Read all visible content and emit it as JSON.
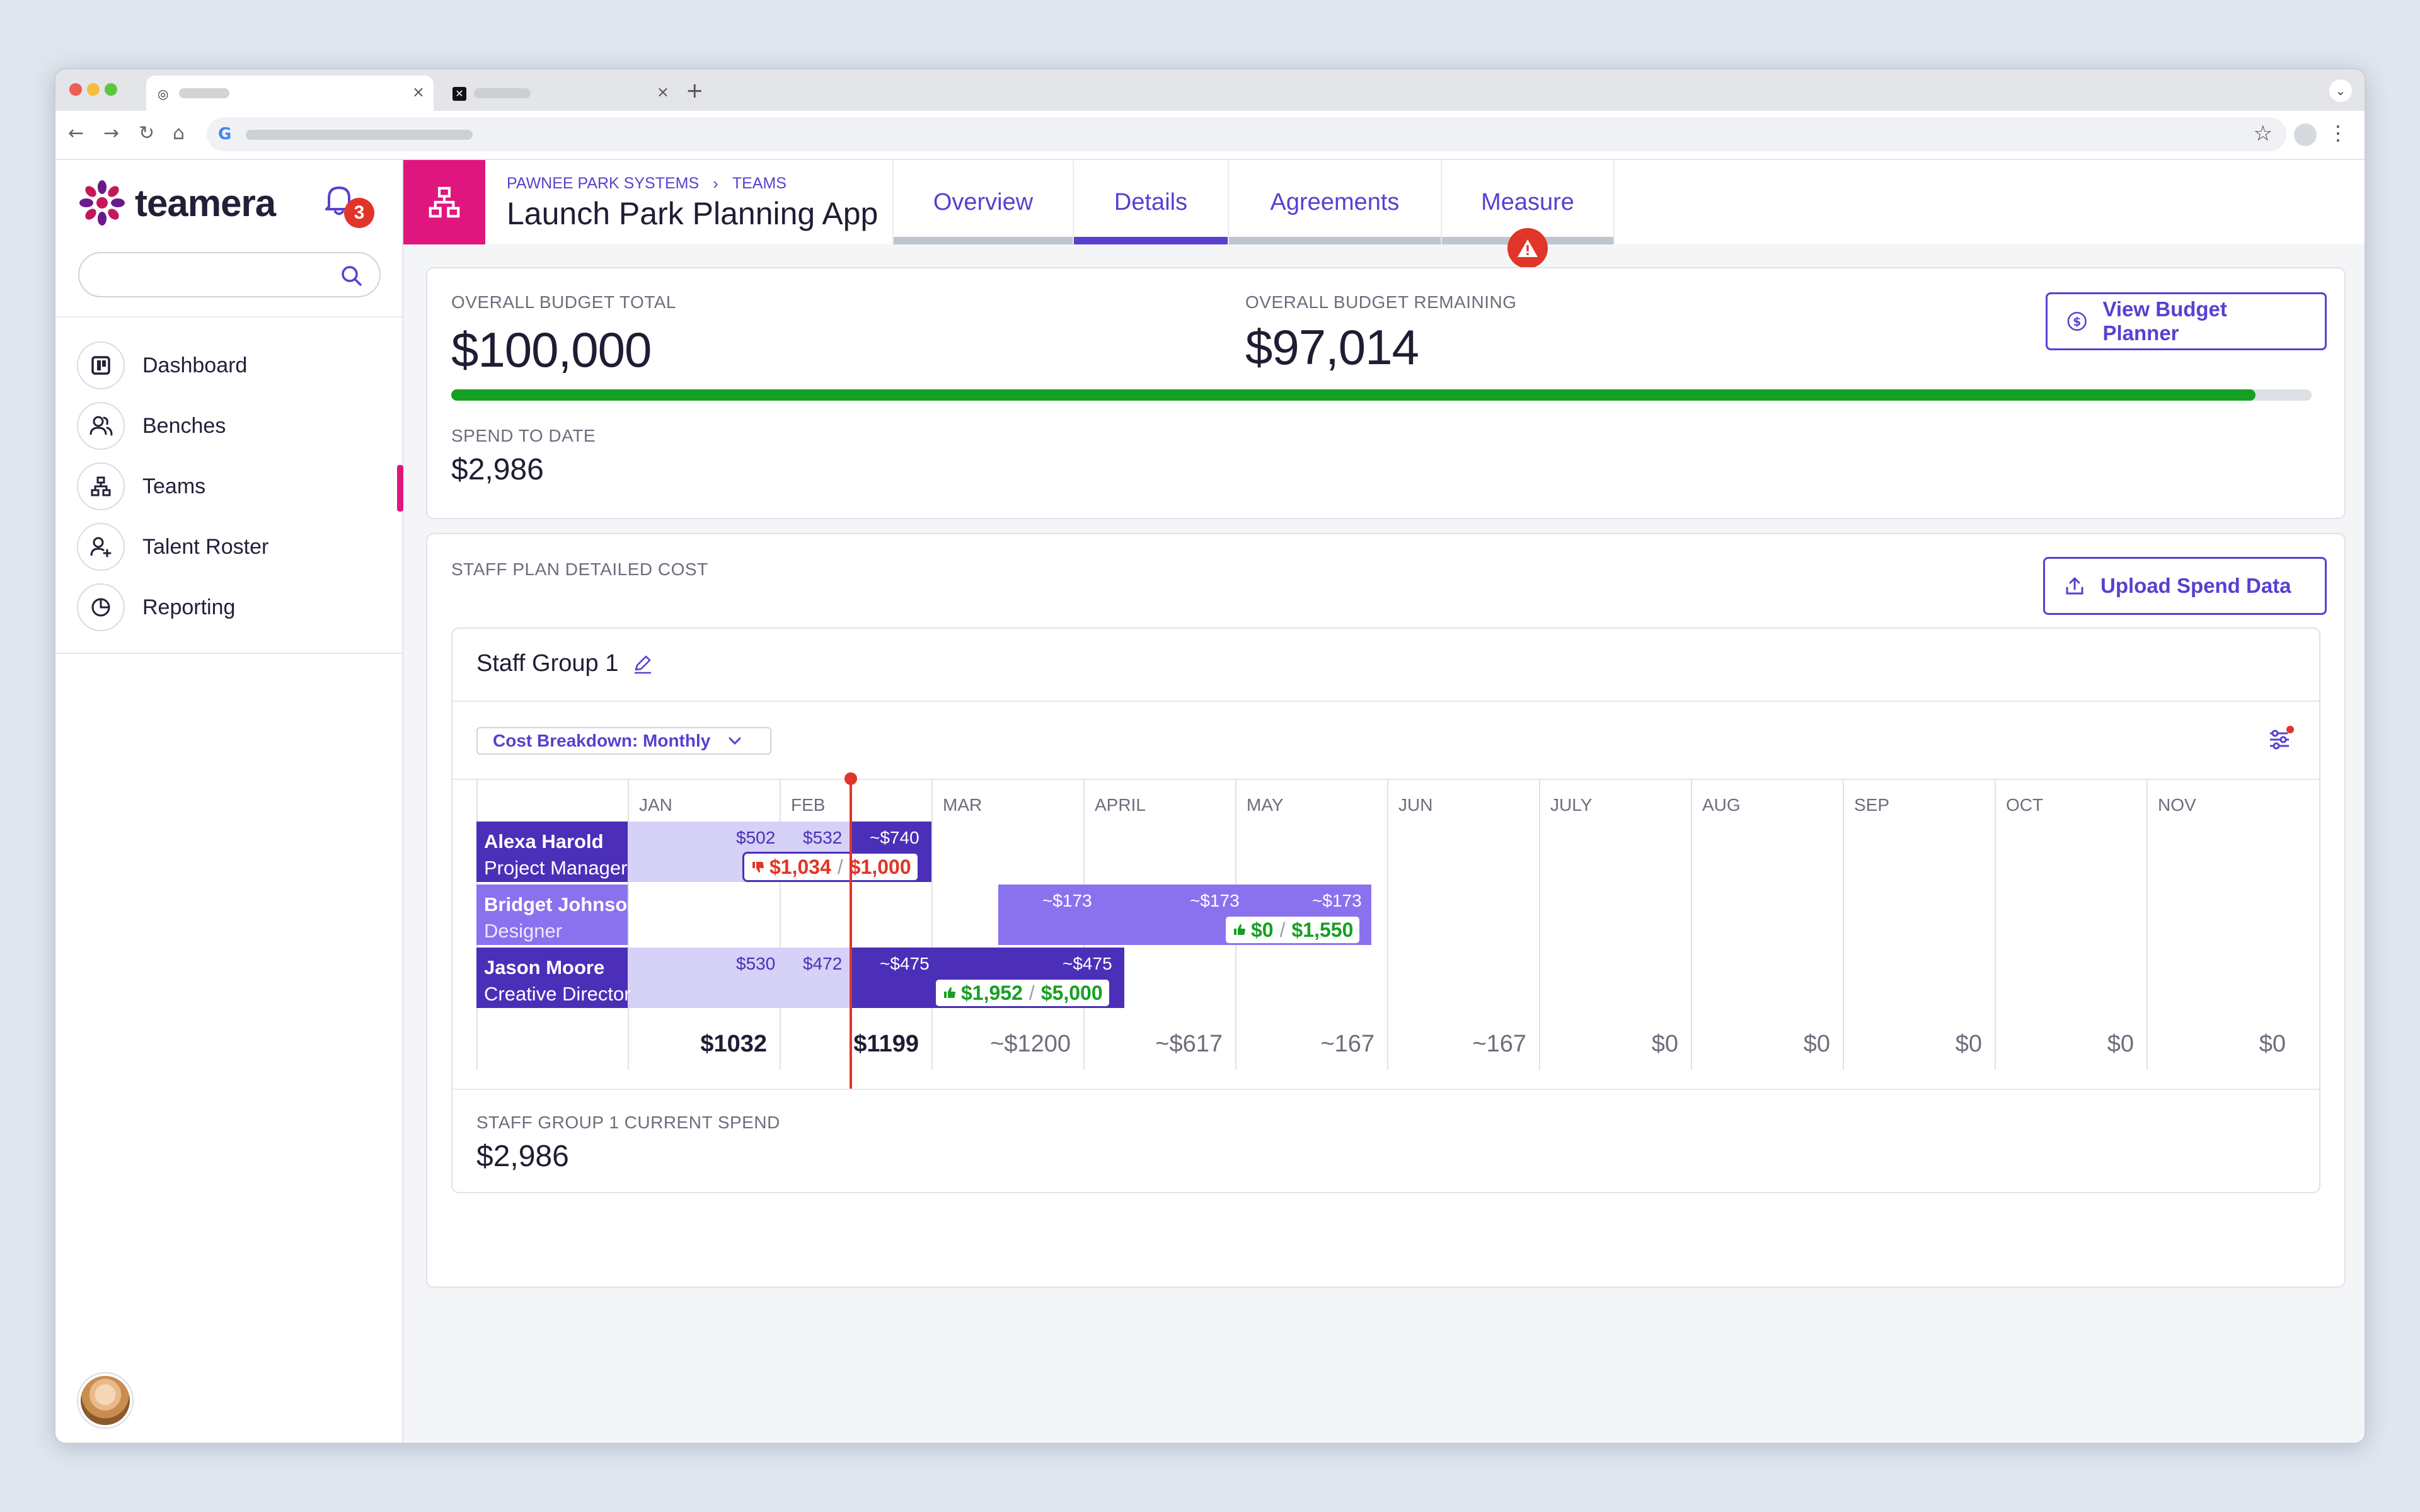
{
  "colors": {
    "accent": "#5a3fd0",
    "brand_pink": "#e0167f",
    "alert": "#e03528",
    "success": "#16a023",
    "bar_dark": "#4b2fb8",
    "bar_light": "#d6d1f6",
    "bar_mid": "#8a72ee"
  },
  "app": {
    "name": "teamera",
    "notifications_count": "3"
  },
  "sidebar": {
    "search_placeholder": "",
    "items": [
      {
        "label": "Dashboard",
        "icon": "dashboard-icon"
      },
      {
        "label": "Benches",
        "icon": "users-icon"
      },
      {
        "label": "Teams",
        "icon": "org-chart-icon",
        "active": true
      },
      {
        "label": "Talent Roster",
        "icon": "user-add-icon"
      },
      {
        "label": "Reporting",
        "icon": "pie-chart-icon"
      }
    ]
  },
  "header": {
    "breadcrumbs": [
      "PAWNEE PARK SYSTEMS",
      "TEAMS"
    ],
    "project_title": "Launch Park Planning App",
    "tabs": [
      {
        "label": "Overview"
      },
      {
        "label": "Details",
        "active": true
      },
      {
        "label": "Agreements"
      },
      {
        "label": "Measure",
        "warning": true
      }
    ]
  },
  "budget": {
    "total_label": "OVERALL BUDGET TOTAL",
    "total_value": "$100,000",
    "remaining_label": "OVERALL BUDGET REMAINING",
    "remaining_value": "$97,014",
    "remaining_fraction": 0.97,
    "spend_label": "SPEND TO DATE",
    "spend_value": "$2,986",
    "planner_button": "View Budget Planner"
  },
  "staff_plan": {
    "section_label": "STAFF PLAN DETAILED COST",
    "upload_button": "Upload Spend Data",
    "group": {
      "title": "Staff Group 1",
      "breakdown_dropdown": "Cost Breakdown: Monthly",
      "months": [
        "JAN",
        "FEB",
        "MAR",
        "APRIL",
        "MAY",
        "JUN",
        "JULY",
        "AUG",
        "SEP",
        "OCT",
        "NOV"
      ],
      "rows": [
        {
          "name": "Alexa Harold",
          "role": "Project Manager",
          "amounts": [
            "$502",
            "$532",
            "~$740"
          ],
          "actual": "$1,034",
          "budget": "$1,000",
          "status": "over"
        },
        {
          "name": "Bridget Johnson",
          "role": "Designer",
          "amounts": [
            "~$173",
            "~$173",
            "~$173"
          ],
          "actual": "$0",
          "budget": "$1,550",
          "status": "ok"
        },
        {
          "name": "Jason Moore",
          "role": "Creative Director",
          "amounts": [
            "$530",
            "$472",
            "~$475",
            "~$475"
          ],
          "actual": "$1,952",
          "budget": "$5,000",
          "status": "ok"
        }
      ],
      "monthly_totals": [
        "$1032",
        "$1199",
        "~$1200",
        "~$617",
        "~167",
        "~167",
        "$0",
        "$0",
        "$0",
        "$0",
        "$0"
      ],
      "current_spend_label": "STAFF GROUP 1 CURRENT SPEND",
      "current_spend_value": "$2,986"
    }
  }
}
